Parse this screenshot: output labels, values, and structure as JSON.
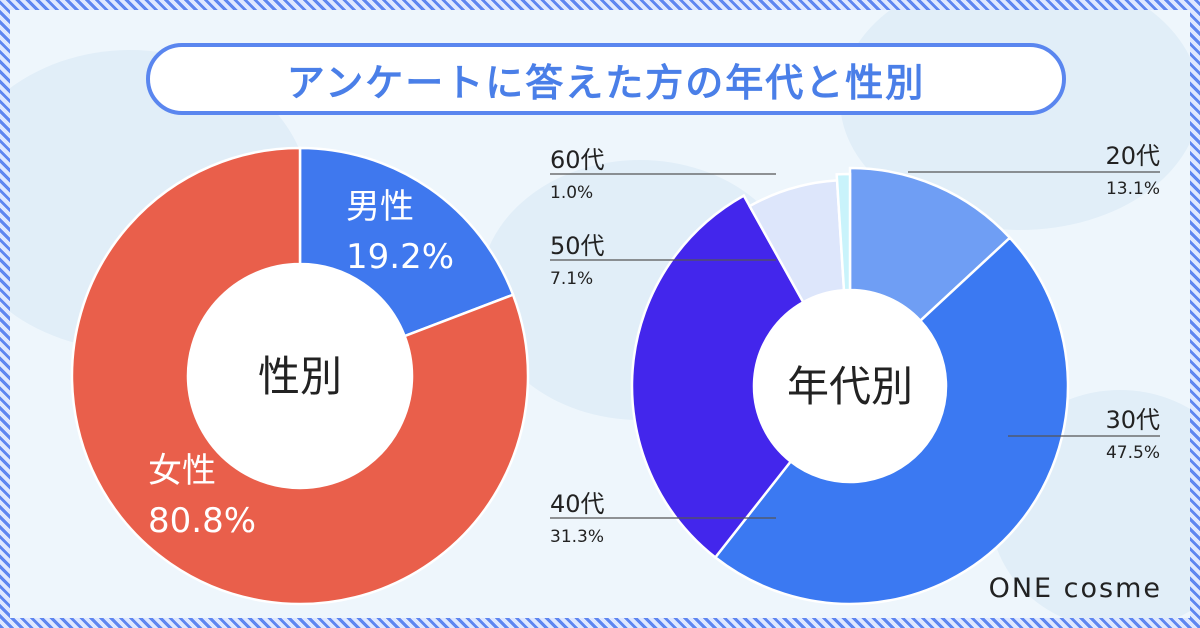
{
  "title": "アンケートに答えた方の年代と性別",
  "brand": "ONE cosme",
  "chart_data": [
    {
      "type": "pie",
      "variant": "donut",
      "center_label": "性別",
      "categories": [
        "男性",
        "女性"
      ],
      "values": [
        19.2,
        80.8
      ],
      "value_labels": [
        "19.2%",
        "80.8%"
      ],
      "colors": [
        "#3f78ee",
        "#e95f4b"
      ]
    },
    {
      "type": "pie",
      "variant": "donut",
      "center_label": "年代別",
      "categories": [
        "20代",
        "30代",
        "40代",
        "50代",
        "60代"
      ],
      "values": [
        13.1,
        47.5,
        31.3,
        7.1,
        1.0
      ],
      "value_labels": [
        "13.1%",
        "47.5%",
        "31.3%",
        "7.1%",
        "1.0%"
      ],
      "colors": [
        "#6f9ef4",
        "#3b79f2",
        "#4326ec",
        "#dde6fb",
        "#c9f3fb"
      ]
    }
  ]
}
